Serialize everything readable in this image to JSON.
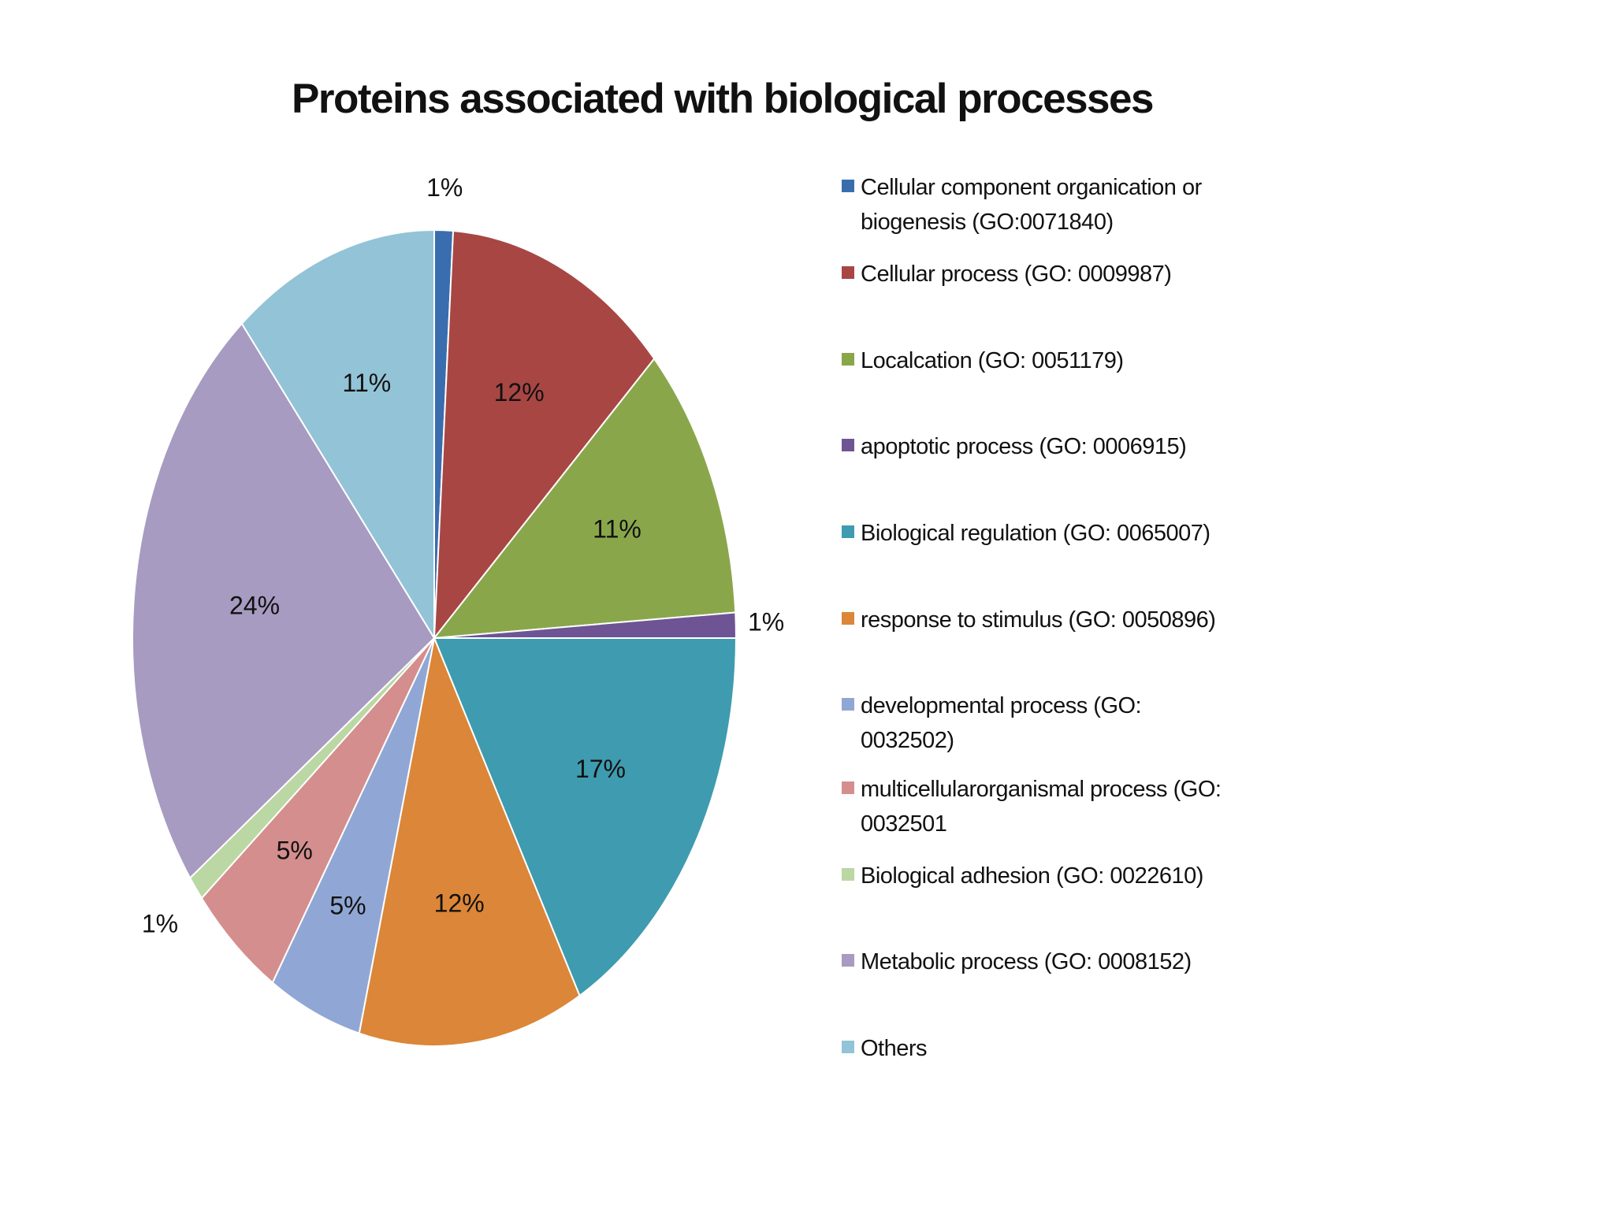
{
  "chart_data": {
    "type": "pie",
    "title": "Proteins associated with biological processes",
    "slices": [
      {
        "label": "Cellular component organication or biogenesis (GO:0071840)",
        "value": 1,
        "display": "1%",
        "color": "#3A6DAE"
      },
      {
        "label": "Cellular process (GO: 0009987)",
        "value": 12,
        "display": "12%",
        "color": "#A84644"
      },
      {
        "label": "Localcation (GO: 0051179)",
        "value": 11,
        "display": "11%",
        "color": "#89A74A"
      },
      {
        "label": "apoptotic process (GO: 0006915)",
        "value": 1,
        "display": "1%",
        "color": "#6E5494"
      },
      {
        "label": "Biological regulation (GO: 0065007)",
        "value": 17,
        "display": "17%",
        "color": "#3F9BAF"
      },
      {
        "label": "response to stimulus (GO: 0050896)",
        "value": 12,
        "display": "12%",
        "color": "#DB8638"
      },
      {
        "label": "developmental process (GO: 0032502)",
        "value": 5,
        "display": "5%",
        "color": "#90A7D5"
      },
      {
        "label": "multicellularorganismal process (GO: 0032501",
        "value": 5,
        "display": "5%",
        "color": "#D48E8D"
      },
      {
        "label": "Biological adhesion (GO: 0022610)",
        "value": 1,
        "display": "1%",
        "color": "#BBD7A3"
      },
      {
        "label": "Metabolic process (GO: 0008152)",
        "value": 24,
        "display": "24%",
        "color": "#A79BC1"
      },
      {
        "label": "Others",
        "value": 11,
        "display": "11%",
        "color": "#93C3D6"
      }
    ],
    "legend_position": "right"
  }
}
